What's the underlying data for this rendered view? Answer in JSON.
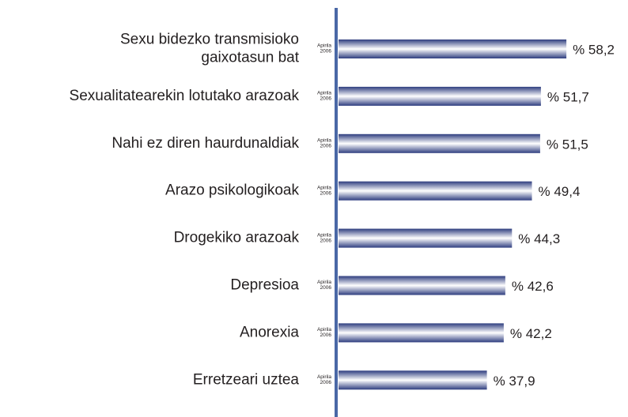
{
  "chart_data": {
    "type": "bar",
    "orientation": "horizontal",
    "categories": [
      [
        "Sexu bidezko transmisioko",
        "gaixotasun bat"
      ],
      [
        "Sexualitatearekin lotutako arazoak"
      ],
      [
        "Nahi ez diren haurdunaldiak"
      ],
      [
        "Arazo psikologikoak"
      ],
      [
        "Drogekiko arazoak"
      ],
      [
        "Depresioa"
      ],
      [
        "Anorexia"
      ],
      [
        "Erretzeari uztea"
      ]
    ],
    "period_label": [
      "Apirila",
      "2006"
    ],
    "values": [
      58.2,
      51.7,
      51.5,
      49.4,
      44.3,
      42.6,
      42.2,
      37.9
    ],
    "value_labels": [
      "% 58,2",
      "% 51,7",
      "% 51,5",
      "% 49,4",
      "% 44,3",
      "% 42,6",
      "% 42,2",
      "% 37,9"
    ],
    "color": "#2e3d7f",
    "axis_color": "#4a68a6"
  }
}
